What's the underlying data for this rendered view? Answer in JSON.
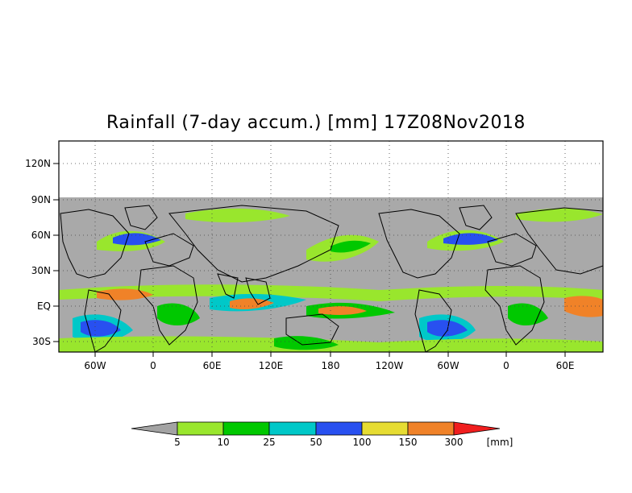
{
  "title": "Rainfall (7-day accum.) [mm] 17Z08Nov2018",
  "map": {
    "lat_labels": [
      "120N",
      "90N",
      "60N",
      "30N",
      "EQ",
      "30S"
    ],
    "lon_labels": [
      "60W",
      "0",
      "60E",
      "120E",
      "180",
      "120W",
      "60W",
      "0",
      "60E"
    ],
    "grid": true,
    "no_data_color": "#a9a9a9",
    "ocean_background_color": "#a9a9a9"
  },
  "legend": {
    "thresholds": [
      "5",
      "10",
      "25",
      "50",
      "100",
      "150",
      "300"
    ],
    "unit": "[mm]",
    "colors": [
      "#a3a3a3",
      "#99e62d",
      "#00c800",
      "#00c8c8",
      "#2850f0",
      "#e6dc32",
      "#f08228",
      "#f01e1e"
    ]
  }
}
